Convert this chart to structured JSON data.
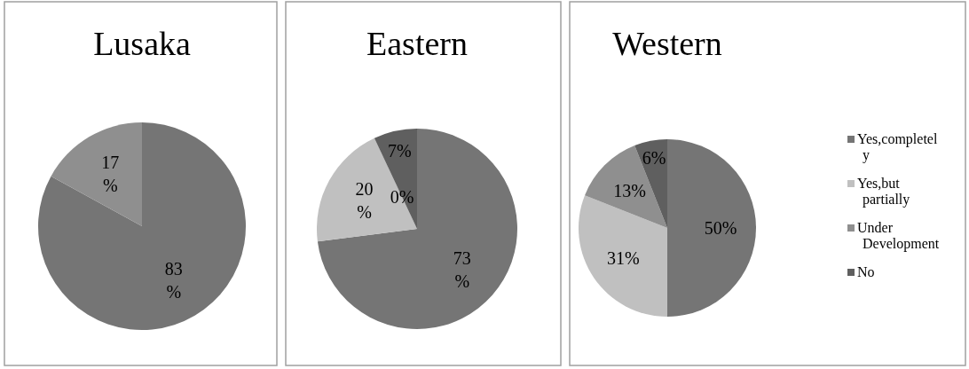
{
  "chart_data": [
    {
      "type": "pie",
      "title": "Lusaka",
      "categories": [
        null,
        null,
        null,
        null
      ],
      "values": [
        83,
        0,
        17,
        0
      ],
      "colors": [
        "#757575",
        "#c0c0c0",
        "#8f8f8f",
        "#5f5f5f"
      ],
      "value_labels": [
        "83%",
        null,
        "17%",
        null
      ],
      "legend": false
    },
    {
      "type": "pie",
      "title": "Eastern",
      "categories": [
        null,
        null,
        null,
        null
      ],
      "values": [
        73,
        20,
        0,
        7
      ],
      "colors": [
        "#757575",
        "#c0c0c0",
        "#8f8f8f",
        "#5f5f5f"
      ],
      "value_labels": [
        "73%",
        "20%",
        "0%",
        "7%"
      ],
      "legend": false
    },
    {
      "type": "pie",
      "title": "Western",
      "categories": [
        "Yes,completely",
        "Yes,but partially",
        "Under Development",
        "No"
      ],
      "values": [
        50,
        31,
        13,
        6
      ],
      "colors": [
        "#757575",
        "#c0c0c0",
        "#8f8f8f",
        "#5f5f5f"
      ],
      "value_labels": [
        "50%",
        "31%",
        "13%",
        "6%"
      ],
      "legend": "right"
    }
  ]
}
